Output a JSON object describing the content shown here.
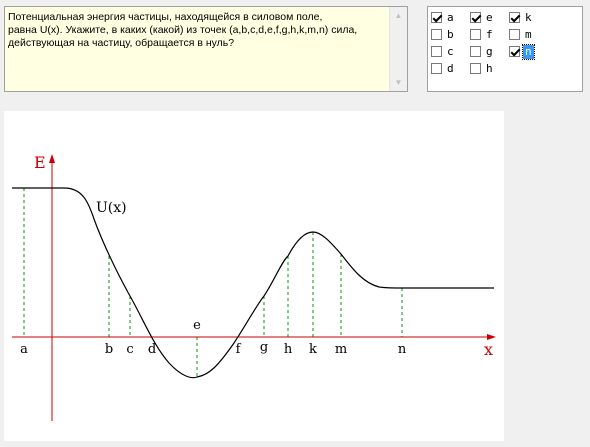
{
  "question": {
    "text": "Потенциальная энергия частицы, находящейся в силовом поле,\nравна U(x). Укажите, в каких (какой) из точек (a,b,c,d,e,f,g,h,k,m,n) сила,\nдействующая на частицу, обращается в нуль?"
  },
  "options": [
    {
      "label": "a",
      "checked": true,
      "selected": false
    },
    {
      "label": "e",
      "checked": true,
      "selected": false
    },
    {
      "label": "k",
      "checked": true,
      "selected": false
    },
    {
      "label": "b",
      "checked": false,
      "selected": false
    },
    {
      "label": "f",
      "checked": false,
      "selected": false
    },
    {
      "label": "m",
      "checked": false,
      "selected": false
    },
    {
      "label": "c",
      "checked": false,
      "selected": false
    },
    {
      "label": "g",
      "checked": false,
      "selected": false
    },
    {
      "label": "n",
      "checked": true,
      "selected": true
    },
    {
      "label": "d",
      "checked": false,
      "selected": false
    },
    {
      "label": "h",
      "checked": false,
      "selected": false
    }
  ],
  "graph": {
    "y_axis_label": "E",
    "x_axis_label": "x",
    "curve_label": "U(x)",
    "points": {
      "a": "a",
      "b": "b",
      "c": "c",
      "d": "d",
      "e": "e",
      "f": "f",
      "g": "g",
      "h": "h",
      "k": "k",
      "m": "m",
      "n": "n"
    },
    "colors": {
      "axis": "#cc0000",
      "curve": "#000000",
      "dropline": "#009900"
    }
  }
}
